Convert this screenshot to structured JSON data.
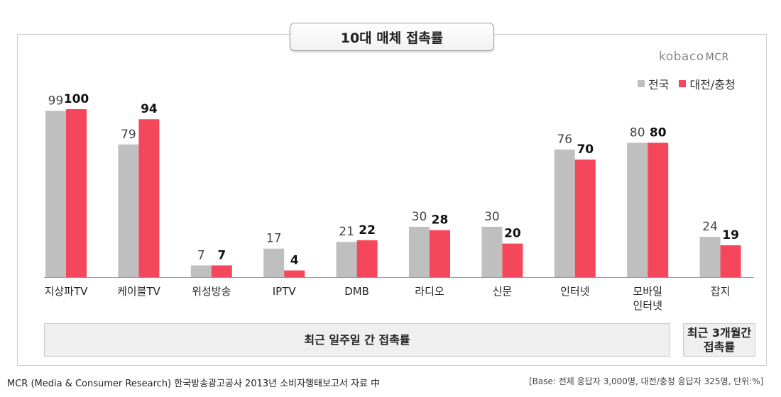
{
  "chart_data": {
    "type": "bar",
    "title": "10대 매체 접촉률",
    "categories": [
      "지상파TV",
      "케이블TV",
      "위성방송",
      "IPTV",
      "DMB",
      "라디오",
      "신문",
      "인터넷",
      "모바일\n인터넷",
      "잡지"
    ],
    "series": [
      {
        "name": "전국",
        "values": [
          99,
          79,
          7,
          17,
          21,
          30,
          30,
          76,
          80,
          24
        ],
        "color": "#bfbfbf"
      },
      {
        "name": "대전/충청",
        "values": [
          100,
          94,
          7,
          4,
          22,
          28,
          20,
          70,
          80,
          19
        ],
        "color": "#f4475b"
      }
    ],
    "ylim": [
      0,
      100
    ],
    "grid": false,
    "legend_position": "top-right",
    "groups": [
      "최근 일주일 간 접촉률",
      "최근 3개월간\n접촉률"
    ]
  },
  "brand": {
    "name": "kobaco",
    "suffix": "MCR"
  },
  "footer": {
    "source": "MCR (Media & Consumer Research) 한국방송광고공사 2013년 소비자행태보고서 자료 中",
    "base": "[Base: 전체 응답자 3,000명, 대전/충청 응답자 325명, 단위:%]"
  }
}
